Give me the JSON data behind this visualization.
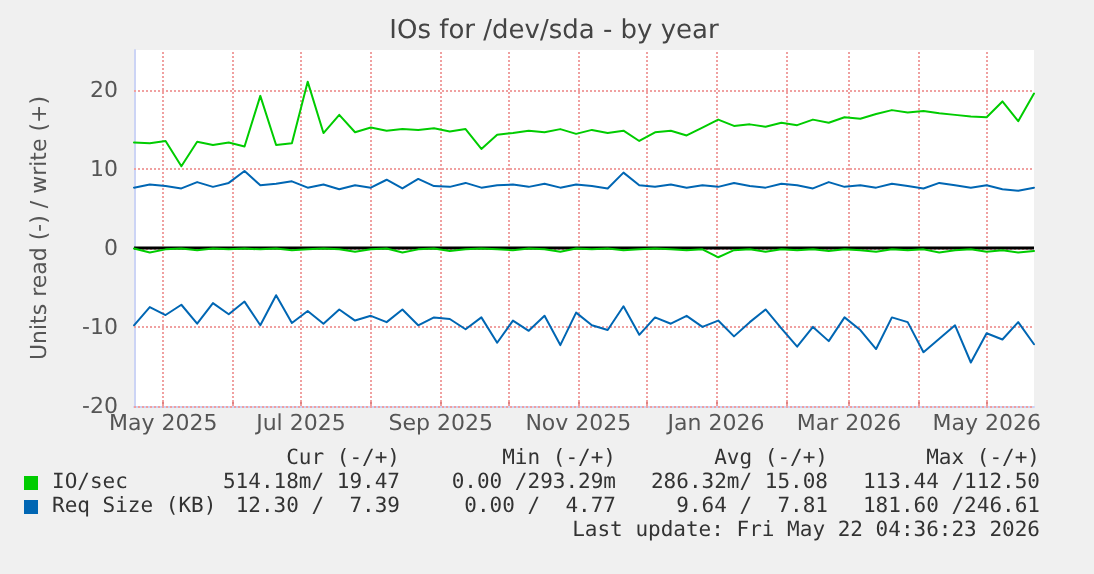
{
  "chart_data": {
    "type": "line",
    "title": "IOs for /dev/sda - by year",
    "ylabel": "Units read (-) / write (+)",
    "x": [
      "2025-04-18",
      "2025-04-25",
      "2025-05-02",
      "2025-05-09",
      "2025-05-16",
      "2025-05-23",
      "2025-05-30",
      "2025-06-06",
      "2025-06-13",
      "2025-06-20",
      "2025-06-27",
      "2025-07-04",
      "2025-07-11",
      "2025-07-18",
      "2025-07-25",
      "2025-08-01",
      "2025-08-08",
      "2025-08-15",
      "2025-08-22",
      "2025-08-29",
      "2025-09-05",
      "2025-09-12",
      "2025-09-19",
      "2025-09-26",
      "2025-10-03",
      "2025-10-10",
      "2025-10-17",
      "2025-10-24",
      "2025-10-31",
      "2025-11-07",
      "2025-11-14",
      "2025-11-21",
      "2025-11-28",
      "2025-12-05",
      "2025-12-12",
      "2025-12-19",
      "2025-12-26",
      "2026-01-02",
      "2026-01-09",
      "2026-01-16",
      "2026-01-23",
      "2026-01-30",
      "2026-02-06",
      "2026-02-13",
      "2026-02-20",
      "2026-02-27",
      "2026-03-06",
      "2026-03-13",
      "2026-03-20",
      "2026-03-27",
      "2026-04-03",
      "2026-04-10",
      "2026-04-17",
      "2026-04-24",
      "2026-05-01",
      "2026-05-08",
      "2026-05-15",
      "2026-05-22"
    ],
    "series": [
      {
        "name": "IO/sec",
        "color": "#00cc00",
        "values": [
          13.3,
          13.2,
          13.5,
          10.3,
          13.4,
          13.0,
          13.3,
          12.8,
          19.2,
          13.0,
          13.2,
          21.0,
          14.5,
          16.8,
          14.6,
          15.2,
          14.8,
          15.0,
          14.9,
          15.1,
          14.7,
          15.0,
          12.5,
          14.3,
          14.5,
          14.8,
          14.6,
          15.0,
          14.4,
          14.9,
          14.5,
          14.8,
          13.5,
          14.6,
          14.8,
          14.2,
          15.2,
          16.2,
          15.4,
          15.6,
          15.3,
          15.8,
          15.5,
          16.2,
          15.8,
          16.5,
          16.3,
          16.9,
          17.4,
          17.1,
          17.3,
          17.0,
          16.8,
          16.6,
          16.5,
          18.5,
          16.0,
          19.5
        ]
      },
      {
        "color": "#00cc00",
        "values": [
          -0.1,
          -0.6,
          -0.2,
          -0.1,
          -0.3,
          -0.1,
          -0.2,
          -0.1,
          -0.2,
          -0.1,
          -0.3,
          -0.2,
          -0.1,
          -0.2,
          -0.5,
          -0.2,
          -0.1,
          -0.6,
          -0.2,
          -0.1,
          -0.4,
          -0.2,
          -0.1,
          -0.2,
          -0.3,
          -0.1,
          -0.2,
          -0.5,
          -0.1,
          -0.2,
          -0.1,
          -0.3,
          -0.2,
          -0.1,
          -0.2,
          -0.3,
          -0.2,
          -1.2,
          -0.3,
          -0.2,
          -0.5,
          -0.2,
          -0.3,
          -0.2,
          -0.4,
          -0.2,
          -0.3,
          -0.5,
          -0.2,
          -0.3,
          -0.2,
          -0.6,
          -0.3,
          -0.2,
          -0.5,
          -0.3,
          -0.6,
          -0.4
        ]
      },
      {
        "name": "Req Size (KB)",
        "color": "#0066b3",
        "values": [
          7.6,
          8.0,
          7.8,
          7.5,
          8.3,
          7.7,
          8.2,
          9.7,
          7.9,
          8.1,
          8.4,
          7.6,
          8.0,
          7.4,
          7.9,
          7.6,
          8.6,
          7.5,
          8.7,
          7.8,
          7.7,
          8.2,
          7.6,
          7.9,
          8.0,
          7.7,
          8.1,
          7.6,
          8.0,
          7.8,
          7.5,
          9.5,
          7.9,
          7.7,
          8.0,
          7.6,
          7.9,
          7.7,
          8.2,
          7.8,
          7.6,
          8.1,
          7.9,
          7.5,
          8.3,
          7.7,
          7.9,
          7.6,
          8.1,
          7.8,
          7.5,
          8.2,
          7.9,
          7.6,
          7.9,
          7.4,
          7.2,
          7.6
        ]
      },
      {
        "color": "#0066b3",
        "values": [
          -9.8,
          -7.5,
          -8.5,
          -7.2,
          -9.6,
          -7.0,
          -8.4,
          -6.8,
          -9.8,
          -6.0,
          -9.5,
          -8.0,
          -9.6,
          -7.8,
          -9.2,
          -8.6,
          -9.4,
          -7.8,
          -9.8,
          -8.8,
          -9.0,
          -10.3,
          -8.8,
          -12.0,
          -9.2,
          -10.5,
          -8.6,
          -12.3,
          -8.2,
          -9.8,
          -10.4,
          -7.4,
          -11.0,
          -8.8,
          -9.6,
          -8.6,
          -10.0,
          -9.2,
          -11.2,
          -9.4,
          -7.8,
          -10.2,
          -12.5,
          -10.0,
          -11.8,
          -8.8,
          -10.4,
          -12.8,
          -8.8,
          -9.4,
          -13.2,
          -11.5,
          -9.8,
          -14.5,
          -10.8,
          -11.6,
          -9.4,
          -12.2
        ]
      }
    ],
    "xlim": [
      "2025-04-18",
      "2026-05-22"
    ],
    "xticks": [
      {
        "value": "2025-05-01",
        "label": "May 2025"
      },
      {
        "value": "2025-06-01",
        "label": null
      },
      {
        "value": "2025-07-01",
        "label": "Jul 2025"
      },
      {
        "value": "2025-08-01",
        "label": null
      },
      {
        "value": "2025-09-01",
        "label": "Sep 2025"
      },
      {
        "value": "2025-10-01",
        "label": null
      },
      {
        "value": "2025-11-01",
        "label": "Nov 2025"
      },
      {
        "value": "2025-12-01",
        "label": null
      },
      {
        "value": "2026-01-01",
        "label": "Jan 2026"
      },
      {
        "value": "2026-02-01",
        "label": null
      },
      {
        "value": "2026-03-01",
        "label": "Mar 2026"
      },
      {
        "value": "2026-04-01",
        "label": null
      },
      {
        "value": "2026-05-01",
        "label": "May 2026"
      }
    ],
    "ylim": [
      -20,
      25
    ],
    "yticks": [
      -20,
      -10,
      0,
      10,
      20
    ],
    "ref_lines": [
      {
        "axis": "y",
        "value": 0,
        "color": "#000000"
      }
    ],
    "grid": true,
    "legend": "bottom",
    "marker": "none",
    "line_style": "solid",
    "annotations": [
      "Cur (-/+)",
      "Min (-/+)",
      "Avg (-/+)",
      "Max (-/+)",
      "514.18m/ 19.47",
      "0.00 /293.29m",
      "286.32m/ 15.08",
      "113.44 /112.50",
      "12.30 /  7.39",
      "0.00 /  4.77",
      "9.64 /  7.81",
      "181.60 /246.61",
      "Last update: Fri May 22 04:36:23 2026"
    ]
  }
}
